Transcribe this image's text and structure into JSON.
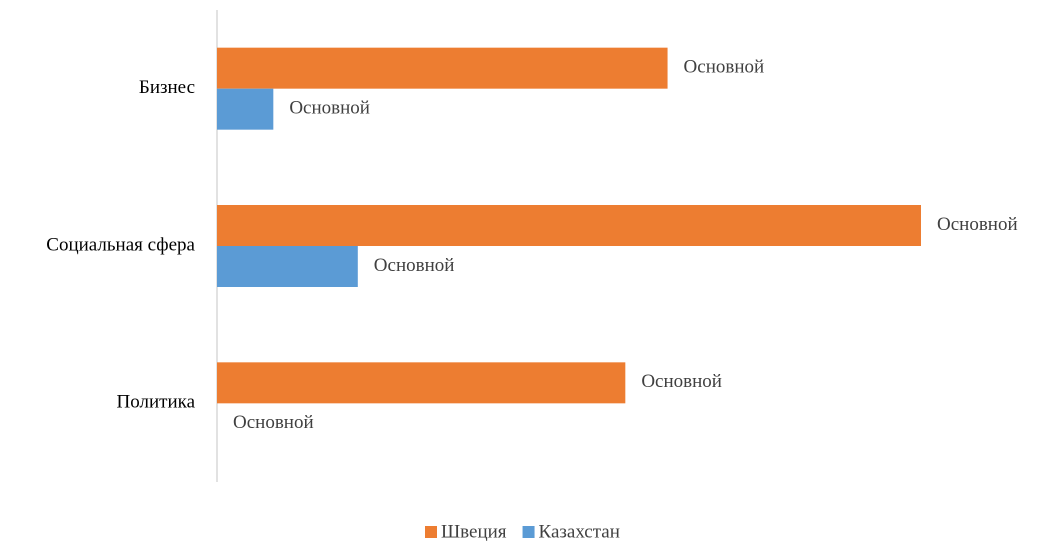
{
  "chart_data": {
    "type": "bar",
    "orientation": "horizontal",
    "categories": [
      "Бизнес",
      "Социальная сфера",
      "Политика"
    ],
    "series": [
      {
        "name": "Швеция",
        "color": "#ed7d31",
        "values": [
          64,
          100,
          58
        ],
        "value_labels": [
          "Основной",
          "Основной",
          "Основной"
        ]
      },
      {
        "name": "Казахстан",
        "color": "#5b9bd5",
        "values": [
          8,
          20,
          0
        ],
        "value_labels": [
          "Основной",
          "Основной",
          "Основной"
        ]
      }
    ],
    "xlim": [
      0,
      100
    ],
    "legend": "bottom"
  }
}
